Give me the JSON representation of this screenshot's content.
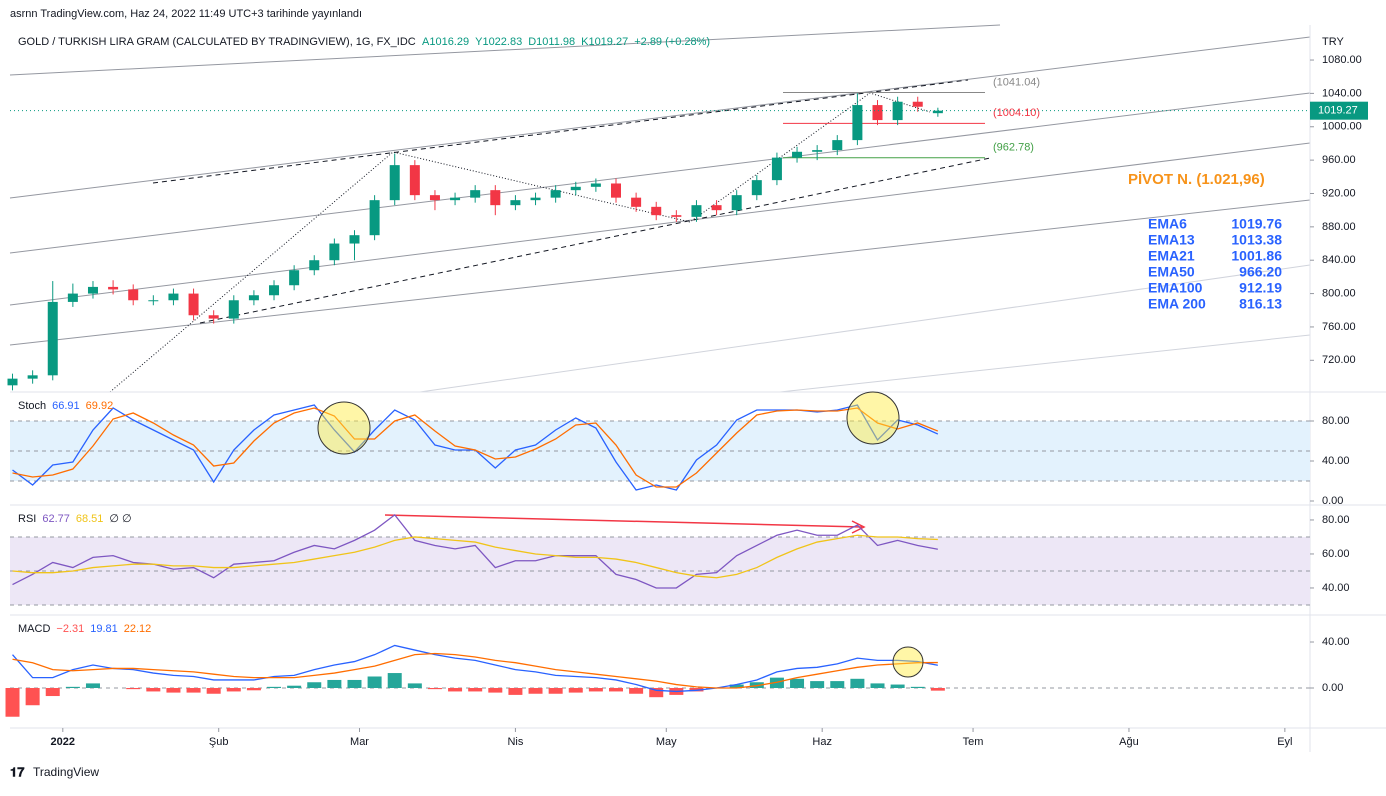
{
  "header": {
    "published": "asrnn TradingView.com, Haz 24, 2022 11:49 UTC+3 tarihinde yayınlandı",
    "footer": "TradingView"
  },
  "chart_data": [
    {
      "type": "candlestick",
      "title": "GOLD / TURKISH LIRA GRAM (CALCULATED BY TRADINGVIEW), 1G, FX_IDC",
      "legend_values": [
        "A1016.29",
        "Y1022.83",
        "D1011.98",
        "K1019.27",
        "+2.89 (+0.28%)"
      ],
      "currency": "TRY",
      "up_color": "#089981",
      "down_color": "#f23645",
      "x": [
        -10,
        -6,
        -2,
        2,
        6,
        10,
        14,
        18,
        22,
        26,
        30,
        34,
        38,
        42,
        46,
        50,
        54,
        58,
        62,
        66,
        70,
        74,
        78,
        82,
        86,
        90,
        94,
        98,
        102,
        106,
        110,
        114,
        118,
        122,
        126,
        130,
        134,
        138,
        142,
        146,
        150,
        154,
        158,
        162,
        166,
        170,
        174
      ],
      "ohlc": [
        [
          690,
          704,
          684,
          698
        ],
        [
          698,
          708,
          692,
          702
        ],
        [
          702,
          815,
          696,
          790
        ],
        [
          790,
          812,
          784,
          800
        ],
        [
          800,
          815,
          794,
          808
        ],
        [
          808,
          816,
          799,
          805
        ],
        [
          805,
          811,
          786,
          792
        ],
        [
          792,
          798,
          786,
          792
        ],
        [
          792,
          806,
          786,
          800
        ],
        [
          800,
          806,
          768,
          774
        ],
        [
          774,
          780,
          764,
          770
        ],
        [
          770,
          798,
          764,
          792
        ],
        [
          792,
          804,
          786,
          798
        ],
        [
          798,
          816,
          792,
          810
        ],
        [
          810,
          834,
          804,
          828
        ],
        [
          828,
          846,
          822,
          840
        ],
        [
          840,
          866,
          834,
          860
        ],
        [
          860,
          876,
          840,
          870
        ],
        [
          870,
          918,
          864,
          912
        ],
        [
          912,
          968,
          906,
          954
        ],
        [
          954,
          960,
          912,
          918
        ],
        [
          918,
          924,
          900,
          912
        ],
        [
          912,
          921,
          906,
          915
        ],
        [
          915,
          930,
          909,
          924
        ],
        [
          924,
          930,
          894,
          906
        ],
        [
          906,
          918,
          900,
          912
        ],
        [
          912,
          921,
          906,
          915
        ],
        [
          915,
          930,
          909,
          924
        ],
        [
          924,
          934,
          918,
          928
        ],
        [
          928,
          938,
          922,
          932
        ],
        [
          932,
          938,
          909,
          915
        ],
        [
          915,
          921,
          898,
          904
        ],
        [
          904,
          910,
          888,
          894
        ],
        [
          894,
          900,
          886,
          892
        ],
        [
          892,
          912,
          886,
          906
        ],
        [
          906,
          912,
          894,
          900
        ],
        [
          900,
          924,
          894,
          918
        ],
        [
          918,
          942,
          912,
          936
        ],
        [
          936,
          969,
          930,
          963
        ],
        [
          963,
          976,
          957,
          970
        ],
        [
          970,
          978,
          960,
          972
        ],
        [
          972,
          990,
          966,
          984
        ],
        [
          984,
          1040,
          978,
          1026
        ],
        [
          1026,
          1032,
          1002,
          1008
        ],
        [
          1008,
          1036,
          1002,
          1030
        ],
        [
          1030,
          1036,
          1018,
          1024
        ],
        [
          1016.29,
          1022.83,
          1011.98,
          1019.27
        ]
      ],
      "xlim": [
        -10.5,
        248
      ],
      "xticks": [
        {
          "value": 0,
          "label": "2022"
        },
        {
          "value": 31,
          "label": "Şub"
        },
        {
          "value": 59,
          "label": "Mar"
        },
        {
          "value": 90,
          "label": "Nis"
        },
        {
          "value": 120,
          "label": "May"
        },
        {
          "value": 151,
          "label": "Haz"
        },
        {
          "value": 181,
          "label": "Tem"
        },
        {
          "value": 212,
          "label": "Ağu"
        },
        {
          "value": 243,
          "label": "Eyl"
        }
      ],
      "ylim": [
        682,
        1122
      ],
      "yticks": [
        {
          "value": 720,
          "label": "720.00"
        },
        {
          "value": 760,
          "label": "760.00"
        },
        {
          "value": 800,
          "label": "800.00"
        },
        {
          "value": 840,
          "label": "840.00"
        },
        {
          "value": 880,
          "label": "880.00"
        },
        {
          "value": 920,
          "label": "920.00"
        },
        {
          "value": 960,
          "label": "960.00"
        },
        {
          "value": 1000,
          "label": "1000.00"
        },
        {
          "value": 1040,
          "label": "1040.00"
        },
        {
          "value": 1080,
          "label": "1080.00"
        }
      ],
      "levels": [
        {
          "value": 1041.04,
          "label": "(1041.04)",
          "color": "#888888"
        },
        {
          "value": 1004.1,
          "label": "(1004.10)",
          "color": "#f23645"
        },
        {
          "value": 962.78,
          "label": "(962.78)",
          "color": "#43a047"
        }
      ],
      "pivot": "PİVOT N. (1.021,96)",
      "ema": [
        [
          "EMA6",
          "1019.76"
        ],
        [
          "EMA13",
          "1013.38"
        ],
        [
          "EMA21",
          "1001.86"
        ],
        [
          "EMA50",
          "966.20"
        ],
        [
          "EMA100",
          "912.19"
        ],
        [
          "EMA 200",
          "816.13"
        ]
      ]
    },
    {
      "type": "line",
      "title": "Stoch",
      "ylim": [
        -4,
        109
      ],
      "yticks": [
        {
          "value": 80,
          "label": "80.00"
        },
        {
          "value": 40,
          "label": "40.00"
        },
        {
          "value": 0,
          "label": "0.00"
        }
      ],
      "band": [
        20,
        80
      ],
      "middle": 50,
      "band_color": "#e3f2fd",
      "series": [
        {
          "color": "#2962ff",
          "values": [
            31,
            16,
            36,
            39,
            71,
            93,
            81,
            71,
            61,
            51,
            19,
            51,
            71,
            86,
            91,
            96,
            71,
            49,
            71,
            91,
            81,
            56,
            51,
            51,
            33,
            51,
            56,
            71,
            83,
            73,
            39,
            11,
            16,
            11,
            41,
            56,
            81,
            91,
            91,
            91,
            89,
            91,
            96,
            61,
            81,
            76,
            66.91
          ]
        },
        {
          "color": "#ff6d00",
          "values": [
            28,
            24,
            26,
            32,
            55,
            82,
            88,
            78,
            66,
            56,
            35,
            38,
            60,
            78,
            88,
            93,
            85,
            62,
            62,
            80,
            86,
            70,
            55,
            51,
            42,
            44,
            52,
            62,
            76,
            78,
            56,
            26,
            14,
            14,
            28,
            48,
            68,
            86,
            90,
            91,
            90,
            90,
            93,
            78,
            72,
            78,
            69.92
          ]
        }
      ]
    },
    {
      "type": "line",
      "title": "RSI",
      "extra": "∅ ∅",
      "ylim": [
        24.1,
        88.8
      ],
      "yticks": [
        {
          "value": 80,
          "label": "80.00"
        },
        {
          "value": 60,
          "label": "60.00"
        },
        {
          "value": 40,
          "label": "40.00"
        }
      ],
      "band": [
        30,
        70
      ],
      "middle": 50,
      "band_color": "#ede7f6",
      "series": [
        {
          "color": "#7e57c2",
          "values": [
            42,
            48,
            55,
            52,
            58,
            59,
            55,
            54,
            51,
            52,
            46,
            54,
            55,
            56,
            61,
            65,
            63,
            68,
            74,
            83,
            68,
            65,
            63,
            65,
            52,
            56,
            56,
            59,
            59,
            59,
            48,
            45,
            40,
            40,
            48,
            49,
            59,
            65,
            71,
            74,
            71,
            71,
            77,
            65,
            68,
            65,
            62.77
          ]
        },
        {
          "color": "#f0c419",
          "values": [
            50,
            49,
            49,
            50,
            52,
            53,
            54,
            54,
            53,
            53,
            52,
            52,
            53,
            54,
            55,
            57,
            59,
            61,
            64,
            68,
            70,
            69,
            68,
            67,
            64,
            62,
            60,
            59,
            58,
            58,
            57,
            55,
            52,
            49,
            47,
            46,
            48,
            52,
            58,
            63,
            67,
            69,
            71,
            70,
            70,
            69,
            68.51
          ]
        }
      ]
    },
    {
      "type": "macd",
      "title": "MACD",
      "ylim": [
        -34.8,
        63.5
      ],
      "yticks": [
        {
          "value": 40,
          "label": "40.00"
        },
        {
          "value": 0,
          "label": "0.00"
        }
      ],
      "pos_color": "#26a69a",
      "neg_color": "#ff5252",
      "histogram": {
        "values": [
          -25,
          -15,
          -7,
          1,
          4,
          0,
          -1,
          -3,
          -4,
          -4,
          -5,
          -3,
          -2,
          1,
          2,
          5,
          7,
          7,
          10,
          13,
          4,
          -1,
          -3,
          -3,
          -4,
          -6,
          -5,
          -5,
          -4,
          -3,
          -3,
          -5,
          -8,
          -6,
          -3,
          0,
          3,
          5,
          9,
          8,
          6,
          6,
          8,
          4,
          3,
          1,
          -2.31
        ],
        "last_label": "−2.31"
      },
      "series": [
        {
          "color": "#2962ff",
          "values": [
            29,
            9,
            9,
            16,
            20,
            17,
            16,
            13,
            11,
            10,
            7,
            7,
            7,
            10,
            11,
            16,
            20,
            23,
            29,
            37,
            33,
            29,
            26,
            24,
            20,
            16,
            14,
            11,
            10,
            9,
            7,
            3,
            -2,
            -3,
            -2,
            0,
            3,
            7,
            14,
            17,
            18,
            21,
            26,
            24,
            24,
            23,
            19.81
          ]
        },
        {
          "color": "#ff6d00",
          "values": [
            25,
            22,
            16,
            15,
            16,
            17,
            17,
            16,
            15,
            14,
            12,
            10,
            9,
            9,
            9,
            11,
            13,
            16,
            19,
            24,
            29,
            30,
            29,
            27,
            24,
            22,
            19,
            16,
            14,
            12,
            10,
            8,
            6,
            3,
            1,
            0,
            0,
            2,
            5,
            9,
            12,
            15,
            18,
            20,
            21,
            22,
            22.12
          ]
        }
      ]
    }
  ]
}
